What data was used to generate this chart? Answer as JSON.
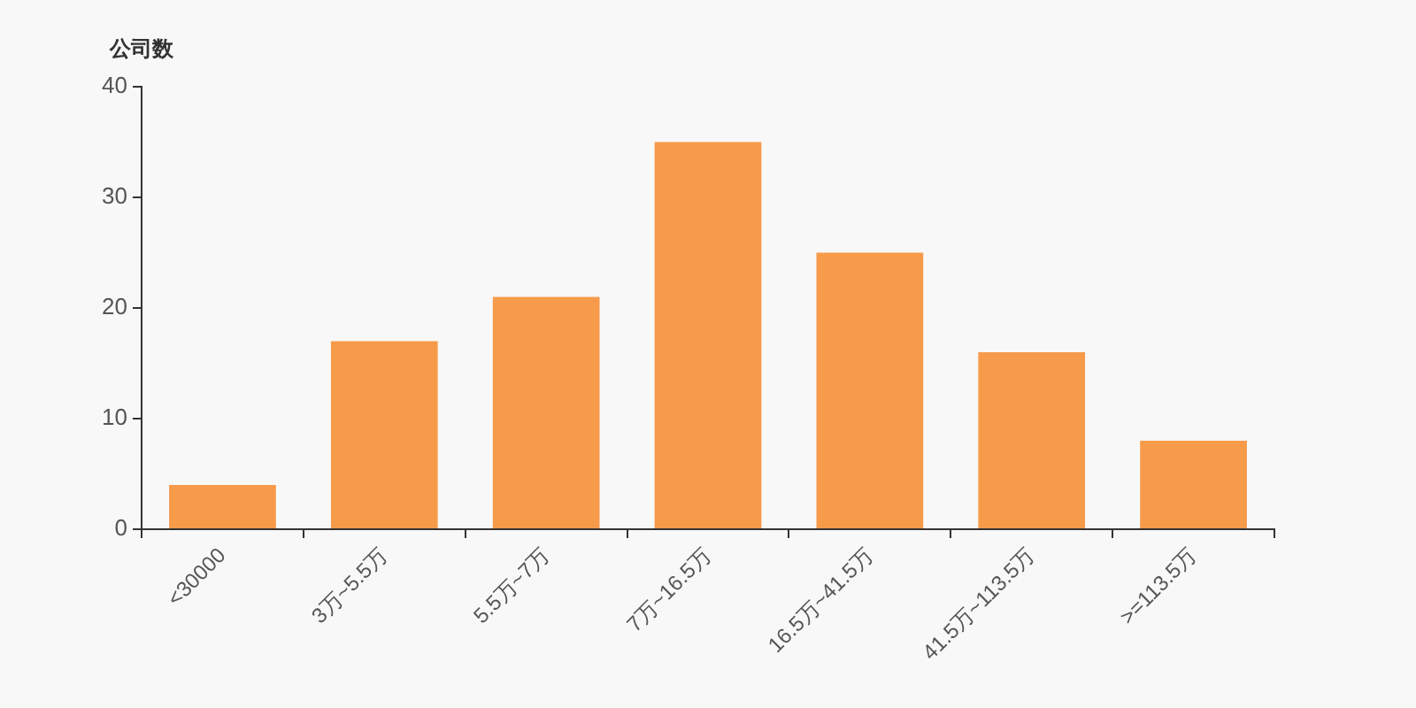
{
  "chart_data": {
    "type": "bar",
    "ylabel": "公司数",
    "categories": [
      "<30000",
      "3万~5.5万",
      "5.5万~7万",
      "7万~16.5万",
      "16.5万~41.5万",
      "41.5万~113.5万",
      ">=113.5万"
    ],
    "values": [
      4,
      17,
      21,
      35,
      25,
      16,
      8
    ],
    "color": "#f79a4a",
    "ylim": [
      0,
      40
    ],
    "yticks": [
      0,
      10,
      20,
      30,
      40
    ],
    "grid": false,
    "legend": false
  }
}
